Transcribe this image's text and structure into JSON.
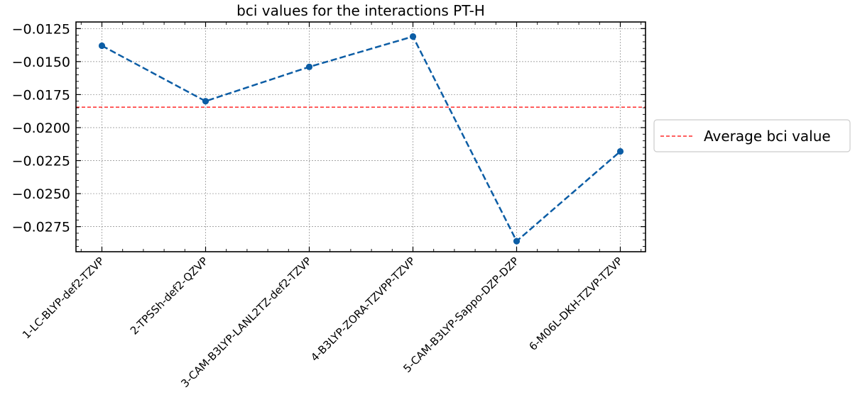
{
  "chart_data": {
    "type": "line",
    "title": "bci values for the interactions PT-H",
    "xlabel": "",
    "ylabel": "",
    "categories": [
      "1-LC-BLYP-def2-TZVP",
      "2-TPSSh-def2-QZVP",
      "3-CAM-B3LYP-LANL2TZ-def2-TZVP",
      "4-B3LYP-ZORA-TZVPP-TZVP",
      "5-CAM-B3LYP-Sappo-DZP-DZP",
      "6-M06L-DKH-TZVP-TZVP"
    ],
    "series": [
      {
        "values": [
          -0.0138,
          -0.018,
          -0.0154,
          -0.0131,
          -0.0286,
          -0.0218
        ],
        "color": "#0c5da5",
        "line_style": "dashed",
        "marker": "circle"
      }
    ],
    "reference_lines": [
      {
        "name": "Average bci value",
        "value": -0.01845,
        "color": "#ff0000",
        "line_style": "dashed"
      }
    ],
    "ylim": [
      -0.0294,
      -0.012
    ],
    "yticks": [
      -0.0275,
      -0.025,
      -0.0225,
      -0.02,
      -0.0175,
      -0.015,
      -0.0125
    ],
    "ytick_labels": [
      "−0.0275",
      "−0.0250",
      "−0.0225",
      "−0.0200",
      "−0.0175",
      "−0.0150",
      "−0.0125"
    ],
    "grid": true,
    "legend_position": "outside-right"
  }
}
